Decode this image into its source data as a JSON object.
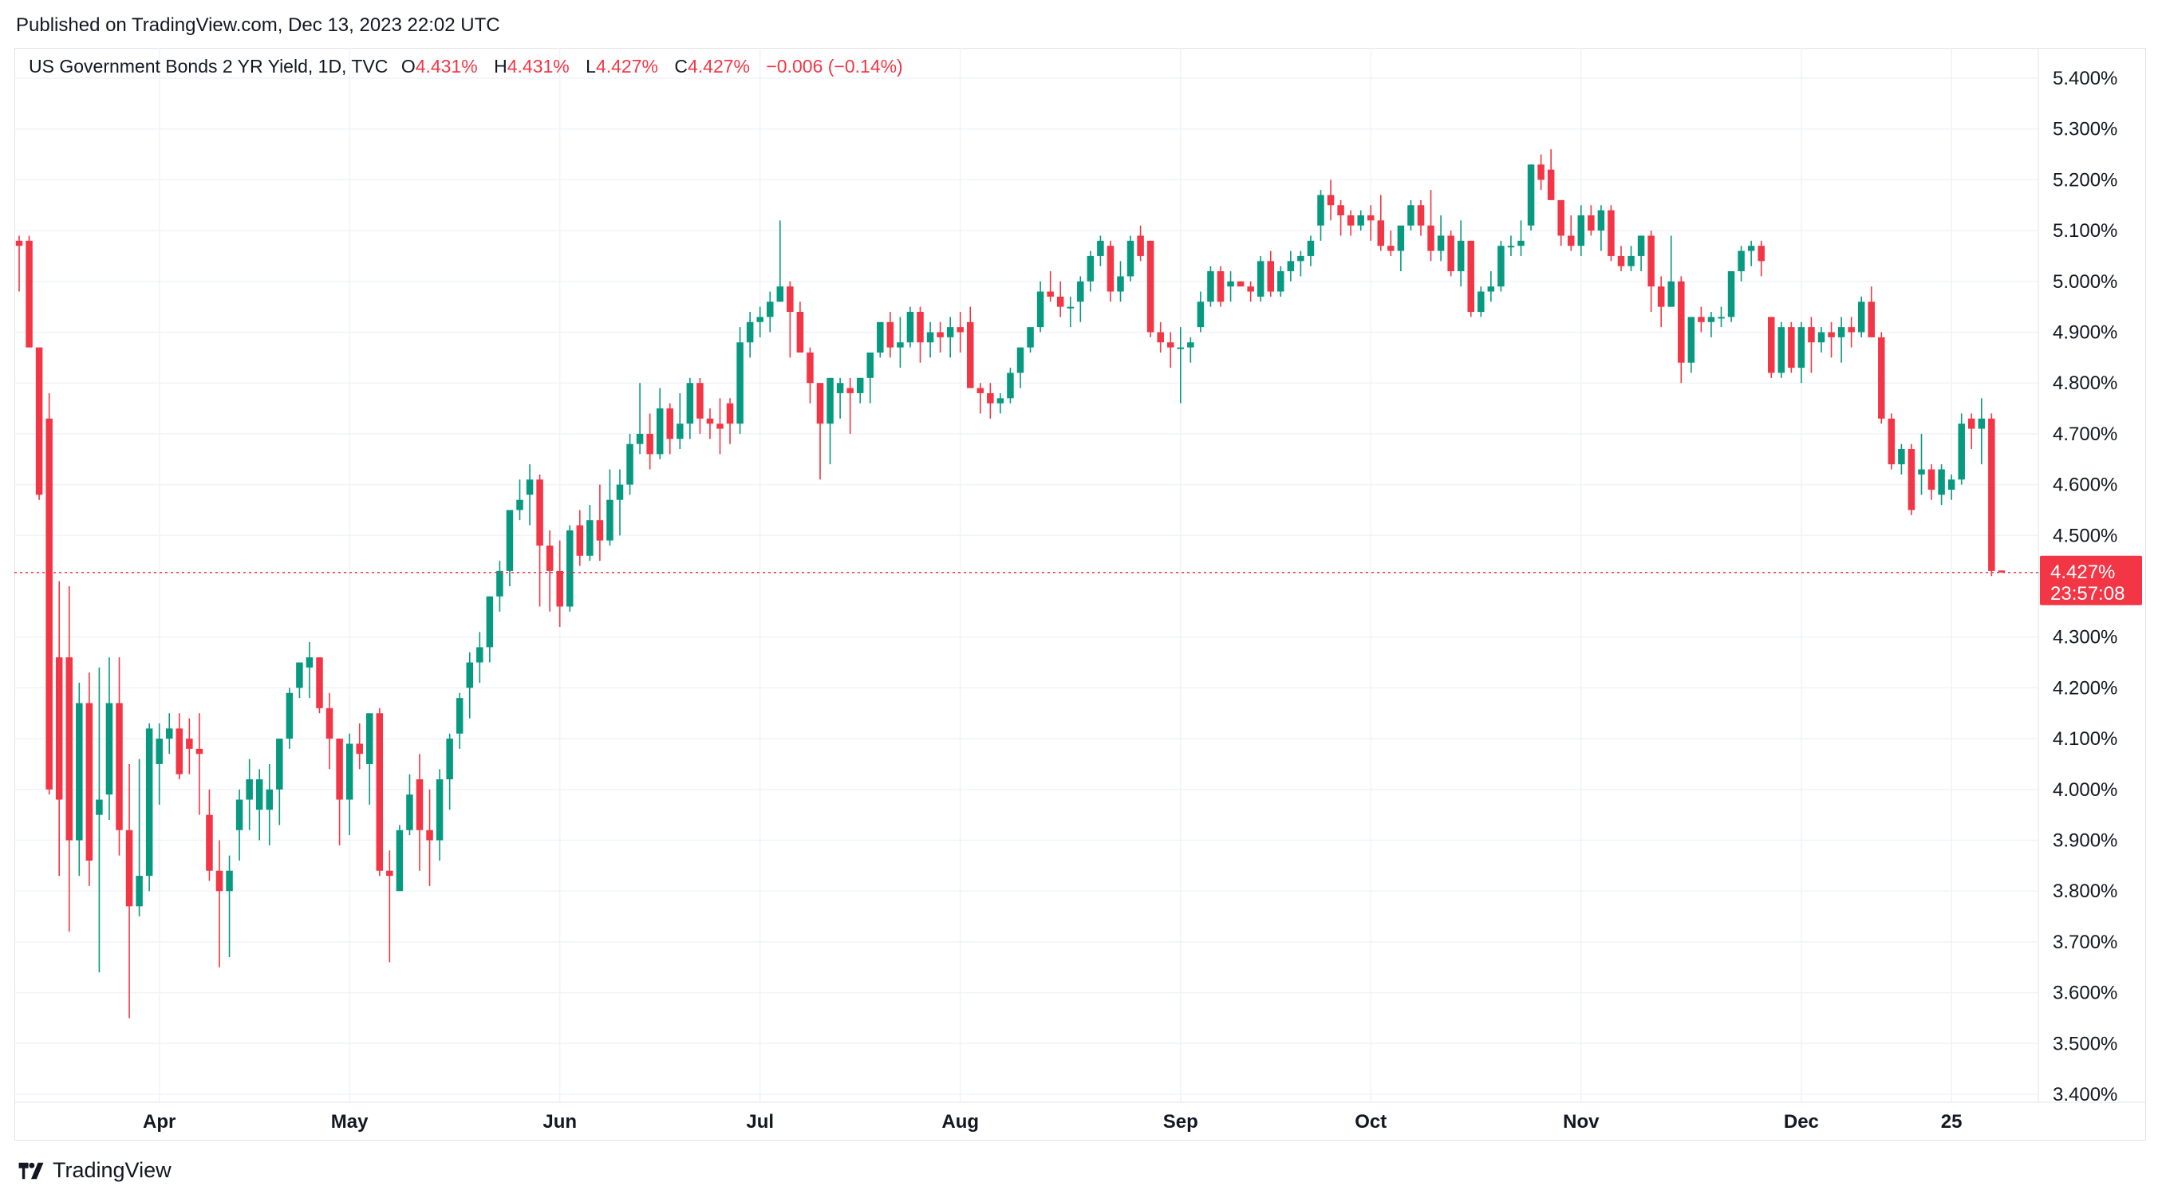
{
  "header": {
    "published": "Published on TradingView.com, Dec 13, 2023 22:02 UTC"
  },
  "legend": {
    "symbol": "US Government Bonds 2 YR Yield, 1D, TVC",
    "o_label": "O",
    "o_value": "4.431%",
    "h_label": "H",
    "h_value": "4.431%",
    "l_label": "L",
    "l_value": "4.427%",
    "c_label": "C",
    "c_value": "4.427%",
    "change": "−0.006 (−0.14%)"
  },
  "footer": {
    "brand": "TradingView",
    "logo_icon": "tradingview-logo-icon"
  },
  "colors": {
    "up": "#089981",
    "down": "#f23645",
    "grid": "#f0f3fa",
    "last_price_line": "#f23645"
  },
  "price_tag": {
    "value": "4.427%",
    "countdown": "23:57:08"
  },
  "chart_data": {
    "type": "candlestick",
    "title": "US Government Bonds 2 YR Yield, 1D, TVC",
    "ylim": [
      3.4,
      5.45
    ],
    "y_ticks": [
      "5.400%",
      "5.300%",
      "5.200%",
      "5.100%",
      "5.000%",
      "4.900%",
      "4.800%",
      "4.700%",
      "4.600%",
      "4.500%",
      "4.300%",
      "4.200%",
      "4.100%",
      "4.000%",
      "3.900%",
      "3.800%",
      "3.700%",
      "3.600%",
      "3.500%",
      "3.400%"
    ],
    "x_ticks": [
      "Apr",
      "May",
      "Jun",
      "Jul",
      "Aug",
      "Sep",
      "Oct",
      "Nov",
      "Dec",
      "25"
    ],
    "x_tick_index": [
      14,
      33,
      54,
      74,
      94,
      116,
      135,
      156,
      178,
      193
    ],
    "last_value": 4.427,
    "grid": true,
    "legend_position": "top-left",
    "ohlc": [
      [
        5.08,
        5.09,
        4.98,
        5.07
      ],
      [
        5.08,
        5.09,
        4.87,
        4.87
      ],
      [
        4.87,
        4.87,
        4.57,
        4.58
      ],
      [
        4.73,
        4.78,
        3.99,
        4.0
      ],
      [
        4.26,
        4.41,
        3.83,
        3.98
      ],
      [
        4.26,
        4.4,
        3.72,
        3.9
      ],
      [
        3.9,
        4.21,
        3.83,
        4.17
      ],
      [
        4.17,
        4.23,
        3.81,
        3.86
      ],
      [
        3.95,
        4.24,
        3.64,
        3.98
      ],
      [
        3.99,
        4.26,
        3.94,
        4.17
      ],
      [
        4.17,
        4.26,
        3.87,
        3.92
      ],
      [
        3.92,
        4.05,
        3.55,
        3.77
      ],
      [
        3.77,
        4.06,
        3.75,
        3.83
      ],
      [
        3.83,
        4.13,
        3.8,
        4.12
      ],
      [
        4.05,
        4.13,
        3.97,
        4.1
      ],
      [
        4.1,
        4.15,
        4.07,
        4.12
      ],
      [
        4.12,
        4.15,
        4.02,
        4.03
      ],
      [
        4.1,
        4.14,
        4.03,
        4.08
      ],
      [
        4.08,
        4.15,
        3.95,
        4.07
      ],
      [
        3.95,
        4.0,
        3.82,
        3.84
      ],
      [
        3.84,
        3.9,
        3.65,
        3.8
      ],
      [
        3.8,
        3.87,
        3.67,
        3.84
      ],
      [
        3.92,
        4.0,
        3.86,
        3.98
      ],
      [
        3.98,
        4.06,
        3.92,
        4.02
      ],
      [
        3.96,
        4.04,
        3.9,
        4.02
      ],
      [
        3.96,
        4.05,
        3.89,
        4.0
      ],
      [
        4.0,
        4.1,
        3.93,
        4.1
      ],
      [
        4.1,
        4.2,
        4.08,
        4.19
      ],
      [
        4.2,
        4.25,
        4.18,
        4.25
      ],
      [
        4.24,
        4.29,
        4.18,
        4.26
      ],
      [
        4.26,
        4.26,
        4.15,
        4.16
      ],
      [
        4.16,
        4.19,
        4.04,
        4.1
      ],
      [
        4.1,
        4.1,
        3.89,
        3.98
      ],
      [
        3.98,
        4.11,
        3.91,
        4.09
      ],
      [
        4.09,
        4.13,
        4.04,
        4.07
      ],
      [
        4.05,
        4.15,
        3.97,
        4.15
      ],
      [
        4.15,
        4.16,
        3.83,
        3.84
      ],
      [
        3.84,
        3.88,
        3.66,
        3.83
      ],
      [
        3.8,
        3.93,
        3.8,
        3.92
      ],
      [
        3.92,
        4.03,
        3.91,
        3.99
      ],
      [
        4.02,
        4.07,
        3.84,
        3.92
      ],
      [
        3.92,
        4.0,
        3.81,
        3.9
      ],
      [
        3.9,
        4.04,
        3.86,
        4.02
      ],
      [
        4.02,
        4.11,
        3.96,
        4.1
      ],
      [
        4.11,
        4.19,
        4.08,
        4.18
      ],
      [
        4.2,
        4.27,
        4.14,
        4.25
      ],
      [
        4.25,
        4.31,
        4.21,
        4.28
      ],
      [
        4.28,
        4.38,
        4.25,
        4.38
      ],
      [
        4.38,
        4.45,
        4.35,
        4.43
      ],
      [
        4.43,
        4.55,
        4.4,
        4.55
      ],
      [
        4.55,
        4.61,
        4.53,
        4.57
      ],
      [
        4.58,
        4.64,
        4.52,
        4.61
      ],
      [
        4.61,
        4.62,
        4.36,
        4.48
      ],
      [
        4.48,
        4.51,
        4.35,
        4.43
      ],
      [
        4.43,
        4.49,
        4.32,
        4.36
      ],
      [
        4.36,
        4.52,
        4.35,
        4.51
      ],
      [
        4.52,
        4.55,
        4.44,
        4.46
      ],
      [
        4.46,
        4.56,
        4.45,
        4.53
      ],
      [
        4.53,
        4.6,
        4.45,
        4.49
      ],
      [
        4.49,
        4.63,
        4.48,
        4.57
      ],
      [
        4.57,
        4.63,
        4.5,
        4.6
      ],
      [
        4.6,
        4.7,
        4.58,
        4.68
      ],
      [
        4.68,
        4.8,
        4.66,
        4.7
      ],
      [
        4.7,
        4.74,
        4.63,
        4.66
      ],
      [
        4.66,
        4.79,
        4.65,
        4.75
      ],
      [
        4.75,
        4.76,
        4.66,
        4.69
      ],
      [
        4.69,
        4.78,
        4.67,
        4.72
      ],
      [
        4.72,
        4.81,
        4.69,
        4.8
      ],
      [
        4.8,
        4.81,
        4.7,
        4.73
      ],
      [
        4.73,
        4.75,
        4.69,
        4.72
      ],
      [
        4.72,
        4.77,
        4.66,
        4.71
      ],
      [
        4.76,
        4.77,
        4.68,
        4.72
      ],
      [
        4.72,
        4.91,
        4.7,
        4.88
      ],
      [
        4.88,
        4.94,
        4.85,
        4.92
      ],
      [
        4.92,
        4.95,
        4.89,
        4.93
      ],
      [
        4.93,
        4.98,
        4.9,
        4.96
      ],
      [
        4.96,
        5.12,
        4.96,
        4.99
      ],
      [
        4.99,
        5.0,
        4.85,
        4.94
      ],
      [
        4.94,
        4.96,
        4.86,
        4.86
      ],
      [
        4.86,
        4.87,
        4.76,
        4.8
      ],
      [
        4.8,
        4.8,
        4.61,
        4.72
      ],
      [
        4.72,
        4.81,
        4.64,
        4.81
      ],
      [
        4.78,
        4.81,
        4.73,
        4.8
      ],
      [
        4.79,
        4.81,
        4.7,
        4.78
      ],
      [
        4.78,
        4.81,
        4.76,
        4.81
      ],
      [
        4.81,
        4.86,
        4.76,
        4.86
      ],
      [
        4.86,
        4.92,
        4.85,
        4.92
      ],
      [
        4.92,
        4.94,
        4.85,
        4.87
      ],
      [
        4.87,
        4.93,
        4.83,
        4.88
      ],
      [
        4.88,
        4.95,
        4.87,
        4.94
      ],
      [
        4.94,
        4.95,
        4.84,
        4.88
      ],
      [
        4.88,
        4.92,
        4.85,
        4.9
      ],
      [
        4.9,
        4.92,
        4.86,
        4.89
      ],
      [
        4.89,
        4.93,
        4.85,
        4.91
      ],
      [
        4.91,
        4.94,
        4.86,
        4.9
      ],
      [
        4.92,
        4.95,
        4.8,
        4.79
      ],
      [
        4.79,
        4.8,
        4.74,
        4.78
      ],
      [
        4.78,
        4.8,
        4.73,
        4.76
      ],
      [
        4.76,
        4.78,
        4.74,
        4.77
      ],
      [
        4.77,
        4.83,
        4.76,
        4.82
      ],
      [
        4.82,
        4.87,
        4.79,
        4.87
      ],
      [
        4.87,
        4.91,
        4.86,
        4.91
      ],
      [
        4.91,
        5.0,
        4.9,
        4.98
      ],
      [
        4.98,
        5.02,
        4.96,
        4.97
      ],
      [
        4.97,
        5.0,
        4.93,
        4.95
      ],
      [
        4.95,
        4.97,
        4.91,
        4.95
      ],
      [
        4.96,
        5.01,
        4.92,
        5.0
      ],
      [
        5.0,
        5.06,
        4.98,
        5.05
      ],
      [
        5.05,
        5.09,
        5.03,
        5.08
      ],
      [
        5.07,
        5.08,
        4.96,
        4.98
      ],
      [
        4.98,
        5.04,
        4.96,
        5.01
      ],
      [
        5.01,
        5.09,
        5.0,
        5.08
      ],
      [
        5.09,
        5.11,
        5.04,
        5.05
      ],
      [
        5.08,
        5.08,
        4.89,
        4.9
      ],
      [
        4.9,
        4.92,
        4.86,
        4.88
      ],
      [
        4.88,
        4.9,
        4.83,
        4.87
      ],
      [
        4.87,
        4.91,
        4.76,
        4.87
      ],
      [
        4.87,
        4.89,
        4.84,
        4.88
      ],
      [
        4.91,
        4.98,
        4.9,
        4.96
      ],
      [
        4.96,
        5.03,
        4.95,
        5.02
      ],
      [
        5.02,
        5.03,
        4.95,
        4.96
      ],
      [
        4.99,
        5.02,
        4.96,
        5.0
      ],
      [
        5.0,
        5.0,
        4.99,
        4.99
      ],
      [
        4.99,
        5.0,
        4.96,
        4.98
      ],
      [
        4.97,
        5.05,
        4.96,
        5.04
      ],
      [
        5.04,
        5.06,
        4.97,
        4.98
      ],
      [
        4.98,
        5.03,
        4.97,
        5.02
      ],
      [
        5.02,
        5.06,
        5.0,
        5.04
      ],
      [
        5.04,
        5.06,
        5.01,
        5.05
      ],
      [
        5.05,
        5.09,
        5.03,
        5.08
      ],
      [
        5.11,
        5.18,
        5.08,
        5.17
      ],
      [
        5.17,
        5.2,
        5.12,
        5.15
      ],
      [
        5.15,
        5.16,
        5.09,
        5.13
      ],
      [
        5.13,
        5.14,
        5.09,
        5.11
      ],
      [
        5.11,
        5.14,
        5.1,
        5.13
      ],
      [
        5.13,
        5.15,
        5.08,
        5.12
      ],
      [
        5.12,
        5.17,
        5.06,
        5.07
      ],
      [
        5.07,
        5.1,
        5.05,
        5.06
      ],
      [
        5.06,
        5.1,
        5.02,
        5.11
      ],
      [
        5.11,
        5.16,
        5.1,
        5.15
      ],
      [
        5.15,
        5.16,
        5.09,
        5.11
      ],
      [
        5.11,
        5.18,
        5.04,
        5.06
      ],
      [
        5.06,
        5.13,
        5.04,
        5.09
      ],
      [
        5.09,
        5.1,
        5.01,
        5.02
      ],
      [
        5.02,
        5.12,
        4.99,
        5.08
      ],
      [
        5.08,
        5.08,
        4.93,
        4.94
      ],
      [
        4.94,
        4.99,
        4.93,
        4.98
      ],
      [
        4.98,
        5.02,
        4.96,
        4.99
      ],
      [
        4.99,
        5.08,
        4.98,
        5.07
      ],
      [
        5.07,
        5.09,
        5.05,
        5.07
      ],
      [
        5.07,
        5.12,
        5.05,
        5.08
      ],
      [
        5.11,
        5.23,
        5.1,
        5.23
      ],
      [
        5.23,
        5.25,
        5.18,
        5.2
      ],
      [
        5.22,
        5.26,
        5.16,
        5.16
      ],
      [
        5.16,
        5.16,
        5.07,
        5.09
      ],
      [
        5.09,
        5.13,
        5.06,
        5.07
      ],
      [
        5.07,
        5.15,
        5.05,
        5.13
      ],
      [
        5.13,
        5.15,
        5.09,
        5.1
      ],
      [
        5.1,
        5.15,
        5.06,
        5.14
      ],
      [
        5.14,
        5.15,
        5.04,
        5.05
      ],
      [
        5.05,
        5.07,
        5.02,
        5.03
      ],
      [
        5.03,
        5.07,
        5.02,
        5.05
      ],
      [
        5.05,
        5.09,
        5.02,
        5.09
      ],
      [
        5.09,
        5.1,
        4.94,
        4.99
      ],
      [
        4.99,
        5.01,
        4.91,
        4.95
      ],
      [
        4.95,
        5.09,
        4.95,
        5.0
      ],
      [
        5.0,
        5.01,
        4.8,
        4.84
      ],
      [
        4.84,
        4.93,
        4.82,
        4.93
      ],
      [
        4.93,
        4.95,
        4.9,
        4.92
      ],
      [
        4.92,
        4.94,
        4.89,
        4.93
      ],
      [
        4.93,
        4.95,
        4.91,
        4.93
      ],
      [
        4.93,
        5.02,
        4.92,
        5.02
      ],
      [
        5.02,
        5.07,
        5.0,
        5.06
      ],
      [
        5.06,
        5.08,
        5.03,
        5.07
      ],
      [
        5.07,
        5.08,
        5.01,
        5.04
      ],
      [
        4.93,
        4.93,
        4.81,
        4.82
      ],
      [
        4.82,
        4.92,
        4.81,
        4.91
      ],
      [
        4.91,
        4.92,
        4.82,
        4.83
      ],
      [
        4.83,
        4.92,
        4.8,
        4.91
      ],
      [
        4.91,
        4.93,
        4.82,
        4.88
      ],
      [
        4.88,
        4.91,
        4.86,
        4.9
      ],
      [
        4.9,
        4.92,
        4.85,
        4.89
      ],
      [
        4.89,
        4.93,
        4.84,
        4.91
      ],
      [
        4.91,
        4.93,
        4.87,
        4.9
      ],
      [
        4.9,
        4.97,
        4.89,
        4.96
      ],
      [
        4.96,
        4.99,
        4.89,
        4.89
      ],
      [
        4.89,
        4.9,
        4.72,
        4.73
      ],
      [
        4.73,
        4.74,
        4.63,
        4.64
      ],
      [
        4.64,
        4.68,
        4.62,
        4.67
      ],
      [
        4.67,
        4.68,
        4.54,
        4.55
      ],
      [
        4.62,
        4.7,
        4.58,
        4.63
      ],
      [
        4.63,
        4.64,
        4.57,
        4.59
      ],
      [
        4.58,
        4.64,
        4.56,
        4.63
      ],
      [
        4.59,
        4.62,
        4.57,
        4.61
      ],
      [
        4.61,
        4.74,
        4.6,
        4.72
      ],
      [
        4.73,
        4.74,
        4.67,
        4.71
      ],
      [
        4.71,
        4.77,
        4.64,
        4.73
      ],
      [
        4.73,
        4.74,
        4.42,
        4.43
      ],
      [
        4.431,
        4.431,
        4.427,
        4.427
      ]
    ]
  }
}
